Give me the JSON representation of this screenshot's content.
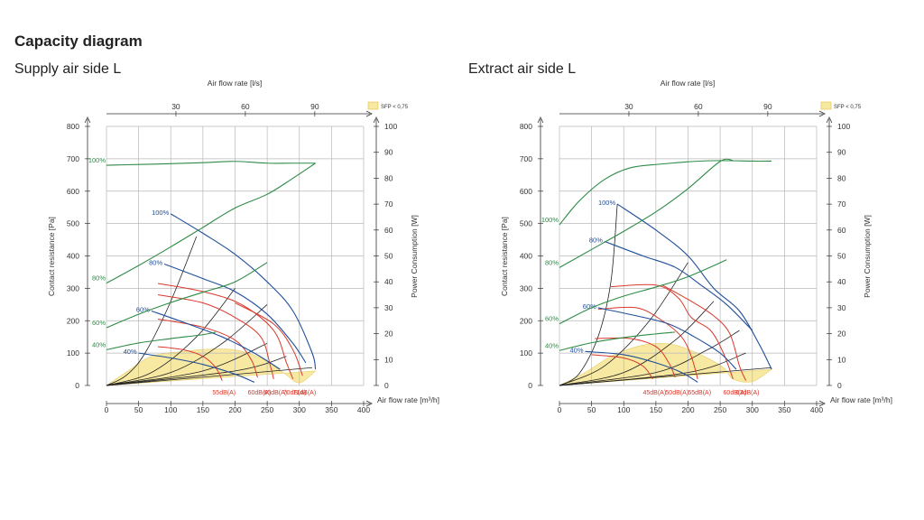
{
  "page_title": "Capacity diagram",
  "colors": {
    "green": "#2e8b46",
    "blue": "#1f4e9a",
    "red": "#d9392b",
    "black": "#222222",
    "yellow": "#f8e9a2",
    "grid": "#b8b8b8"
  },
  "chart_data": [
    {
      "type": "line",
      "title": "Supply air side L",
      "top_axis_label": "Air flow rate [l/s]",
      "top_ticks": [
        "30",
        "60",
        "90"
      ],
      "top_tick_values": [
        108,
        216,
        324
      ],
      "xlabel": "Air flow rate [m³/h]",
      "xlim": [
        0,
        400
      ],
      "x_ticks": [
        "0",
        "50",
        "100",
        "150",
        "200",
        "250",
        "300",
        "350",
        "400"
      ],
      "ylabel": "Contact resistance [Pa]",
      "ylim": [
        0,
        800
      ],
      "y_ticks": [
        "0",
        "100",
        "200",
        "300",
        "400",
        "500",
        "600",
        "700",
        "800"
      ],
      "y2label": "Power Consumption [W]",
      "y2lim": [
        0,
        100
      ],
      "y2_ticks": [
        "0",
        "10",
        "20",
        "30",
        "40",
        "50",
        "60",
        "70",
        "80",
        "90",
        "100"
      ],
      "legend": "SFP < 0,75",
      "sfp_region": [
        [
          0,
          0
        ],
        [
          30,
          40
        ],
        [
          70,
          90
        ],
        [
          120,
          105
        ],
        [
          160,
          112
        ],
        [
          200,
          110
        ],
        [
          240,
          85
        ],
        [
          275,
          40
        ],
        [
          300,
          8
        ],
        [
          325,
          45
        ]
      ],
      "fan_curves": [
        {
          "label": "100%",
          "points": [
            [
              100,
              530
            ],
            [
              150,
              470
            ],
            [
              200,
              405
            ],
            [
              250,
              320
            ],
            [
              290,
              230
            ],
            [
              320,
              100
            ],
            [
              325,
              50
            ]
          ]
        },
        {
          "label": "80%",
          "points": [
            [
              90,
              375
            ],
            [
              150,
              330
            ],
            [
              200,
              290
            ],
            [
              250,
              220
            ],
            [
              290,
              130
            ],
            [
              310,
              70
            ]
          ]
        },
        {
          "label": "60%",
          "points": [
            [
              70,
              230
            ],
            [
              120,
              195
            ],
            [
              180,
              150
            ],
            [
              230,
              100
            ],
            [
              270,
              50
            ]
          ]
        },
        {
          "label": "40%",
          "points": [
            [
              50,
              100
            ],
            [
              100,
              85
            ],
            [
              150,
              65
            ],
            [
              200,
              35
            ],
            [
              230,
              10
            ]
          ]
        }
      ],
      "power_curves": [
        {
          "label": "100%",
          "points": [
            [
              0,
              85
            ],
            [
              50,
              85.3
            ],
            [
              100,
              85.6
            ],
            [
              150,
              86
            ],
            [
              200,
              86.5
            ],
            [
              250,
              85.8
            ],
            [
              290,
              85.8
            ],
            [
              325,
              85.8
            ]
          ]
        },
        {
          "label": "80%",
          "points": [
            [
              0,
              39.5
            ],
            [
              50,
              46.3
            ],
            [
              100,
              53.5
            ],
            [
              150,
              61
            ],
            [
              200,
              68.5
            ],
            [
              250,
              73.8
            ],
            [
              290,
              80
            ],
            [
              325,
              85.8
            ]
          ]
        },
        {
          "label": "60%",
          "points": [
            [
              0,
              22.3
            ],
            [
              50,
              27.5
            ],
            [
              100,
              32
            ],
            [
              150,
              36
            ],
            [
              200,
              40
            ],
            [
              250,
              47.5
            ]
          ]
        },
        {
          "label": "40%",
          "points": [
            [
              0,
              13.8
            ],
            [
              50,
              16.4
            ],
            [
              100,
              18.1
            ],
            [
              150,
              19.6
            ],
            [
              170,
              20.6
            ]
          ]
        }
      ],
      "sound_curves": [
        {
          "label": "55dB(A)",
          "points": [
            [
              80,
              120
            ],
            [
              120,
              110
            ],
            [
              150,
              90
            ],
            [
              170,
              55
            ],
            [
              180,
              15
            ]
          ]
        },
        {
          "label": "60dB(A)",
          "points": [
            [
              80,
              205
            ],
            [
              150,
              180
            ],
            [
              200,
              140
            ],
            [
              225,
              80
            ],
            [
              235,
              25
            ]
          ]
        },
        {
          "label": "65dB(A)",
          "points": [
            [
              80,
              280
            ],
            [
              150,
              255
            ],
            [
              200,
              210
            ],
            [
              240,
              150
            ],
            [
              255,
              60
            ],
            [
              260,
              20
            ]
          ]
        },
        {
          "label": "70dB(A)",
          "points": [
            [
              80,
              315
            ],
            [
              150,
              290
            ],
            [
              210,
              250
            ],
            [
              260,
              170
            ],
            [
              280,
              70
            ],
            [
              290,
              20
            ]
          ]
        },
        {
          "label": "71dB(A)",
          "points": [
            [
              200,
              255
            ],
            [
              260,
              190
            ],
            [
              290,
              110
            ],
            [
              305,
              30
            ]
          ]
        }
      ],
      "system_curves": [
        {
          "points": [
            [
              0,
              0
            ],
            [
              30,
              30
            ],
            [
              60,
              100
            ],
            [
              100,
              260
            ],
            [
              140,
              460
            ]
          ]
        },
        {
          "points": [
            [
              0,
              0
            ],
            [
              70,
              40
            ],
            [
              140,
              150
            ],
            [
              200,
              300
            ]
          ]
        },
        {
          "points": [
            [
              0,
              0
            ],
            [
              100,
              40
            ],
            [
              180,
              130
            ],
            [
              250,
              250
            ]
          ]
        },
        {
          "points": [
            [
              0,
              0
            ],
            [
              150,
              45
            ],
            [
              250,
              130
            ]
          ]
        },
        {
          "points": [
            [
              0,
              0
            ],
            [
              200,
              45
            ],
            [
              280,
              90
            ]
          ]
        },
        {
          "points": [
            [
              0,
              0
            ],
            [
              320,
              55
            ]
          ]
        }
      ]
    },
    {
      "type": "line",
      "title": "Extract air side L",
      "top_axis_label": "Air flow rate [l/s]",
      "top_ticks": [
        "30",
        "60",
        "90"
      ],
      "top_tick_values": [
        108,
        216,
        324
      ],
      "xlabel": "Air flow rate [m³/h]",
      "xlim": [
        0,
        400
      ],
      "x_ticks": [
        "0",
        "50",
        "100",
        "150",
        "200",
        "250",
        "300",
        "350",
        "400"
      ],
      "ylabel": "Contact resistance [Pa]",
      "ylim": [
        0,
        800
      ],
      "y_ticks": [
        "0",
        "100",
        "200",
        "300",
        "400",
        "500",
        "600",
        "700",
        "800"
      ],
      "y2label": "Power Consumption [W]",
      "y2lim": [
        0,
        100
      ],
      "y2_ticks": [
        "0",
        "10",
        "20",
        "30",
        "40",
        "50",
        "60",
        "70",
        "80",
        "90",
        "100"
      ],
      "legend": "SFP < 0,75",
      "sfp_region": [
        [
          0,
          0
        ],
        [
          40,
          40
        ],
        [
          80,
          90
        ],
        [
          120,
          120
        ],
        [
          150,
          130
        ],
        [
          180,
          125
        ],
        [
          220,
          95
        ],
        [
          255,
          55
        ],
        [
          270,
          20
        ],
        [
          300,
          12
        ],
        [
          330,
          50
        ]
      ],
      "fan_curves": [
        {
          "label": "100%",
          "points": [
            [
              90,
              560
            ],
            [
              150,
              480
            ],
            [
              200,
              400
            ],
            [
              240,
              300
            ],
            [
              280,
              230
            ],
            [
              310,
              130
            ],
            [
              330,
              50
            ]
          ]
        },
        {
          "label": "80%",
          "points": [
            [
              70,
              445
            ],
            [
              130,
              400
            ],
            [
              180,
              365
            ],
            [
              220,
              310
            ],
            [
              260,
              250
            ],
            [
              300,
              170
            ]
          ]
        },
        {
          "label": "60%",
          "points": [
            [
              60,
              240
            ],
            [
              120,
              215
            ],
            [
              170,
              190
            ],
            [
              210,
              150
            ],
            [
              250,
              100
            ],
            [
              275,
              50
            ]
          ]
        },
        {
          "label": "40%",
          "points": [
            [
              40,
              105
            ],
            [
              100,
              95
            ],
            [
              150,
              70
            ],
            [
              190,
              40
            ],
            [
              215,
              10
            ]
          ]
        }
      ],
      "power_curves": [
        {
          "label": "100%",
          "points": [
            [
              0,
              62
            ],
            [
              30,
              71
            ],
            [
              70,
              79.5
            ],
            [
              110,
              84
            ],
            [
              160,
              85.5
            ],
            [
              210,
              86.5
            ],
            [
              250,
              86.8
            ],
            [
              300,
              86.6
            ],
            [
              330,
              86.6
            ]
          ]
        },
        {
          "label": "80%",
          "points": [
            [
              0,
              45.5
            ],
            [
              50,
              52.5
            ],
            [
              100,
              59.5
            ],
            [
              150,
              67
            ],
            [
              200,
              76
            ],
            [
              250,
              86.5
            ],
            [
              270,
              86.8
            ]
          ]
        },
        {
          "label": "60%",
          "points": [
            [
              0,
              23.8
            ],
            [
              50,
              30
            ],
            [
              100,
              34.5
            ],
            [
              150,
              38
            ],
            [
              200,
              42
            ],
            [
              260,
              48.5
            ]
          ]
        },
        {
          "label": "40%",
          "points": [
            [
              0,
              13.5
            ],
            [
              50,
              16.5
            ],
            [
              100,
              18.5
            ],
            [
              150,
              19.9
            ],
            [
              180,
              20.6
            ]
          ]
        }
      ],
      "sound_curves": [
        {
          "label": "45dB(A)",
          "points": [
            [
              50,
              95
            ],
            [
              100,
              85
            ],
            [
              130,
              60
            ],
            [
              145,
              20
            ]
          ]
        },
        {
          "label": "50dB(A)",
          "points": [
            [
              55,
              145
            ],
            [
              110,
              145
            ],
            [
              150,
              120
            ],
            [
              170,
              70
            ],
            [
              180,
              25
            ]
          ]
        },
        {
          "label": "55dB(A)",
          "points": [
            [
              60,
              235
            ],
            [
              120,
              240
            ],
            [
              160,
              200
            ],
            [
              190,
              150
            ],
            [
              205,
              90
            ],
            [
              215,
              20
            ]
          ]
        },
        {
          "label": "60dB(A)",
          "points": [
            [
              80,
              305
            ],
            [
              150,
              310
            ],
            [
              185,
              270
            ],
            [
              205,
              210
            ],
            [
              235,
              170
            ],
            [
              255,
              100
            ],
            [
              270,
              20
            ]
          ]
        },
        {
          "label": "63dB(A)",
          "points": [
            [
              160,
              310
            ],
            [
              205,
              260
            ],
            [
              240,
              215
            ],
            [
              265,
              160
            ],
            [
              280,
              60
            ],
            [
              290,
              15
            ]
          ]
        }
      ],
      "system_curves": [
        {
          "points": [
            [
              0,
              0
            ],
            [
              30,
              35
            ],
            [
              60,
              150
            ],
            [
              80,
              320
            ],
            [
              90,
              560
            ]
          ]
        },
        {
          "points": [
            [
              0,
              0
            ],
            [
              70,
              60
            ],
            [
              140,
              200
            ],
            [
              200,
              380
            ]
          ]
        },
        {
          "points": [
            [
              0,
              0
            ],
            [
              100,
              40
            ],
            [
              180,
              140
            ],
            [
              240,
              260
            ]
          ]
        },
        {
          "points": [
            [
              0,
              0
            ],
            [
              150,
              40
            ],
            [
              230,
              110
            ],
            [
              280,
              170
            ]
          ]
        },
        {
          "points": [
            [
              0,
              0
            ],
            [
              200,
              40
            ],
            [
              290,
              100
            ]
          ]
        },
        {
          "points": [
            [
              0,
              0
            ],
            [
              330,
              55
            ]
          ]
        }
      ]
    }
  ]
}
